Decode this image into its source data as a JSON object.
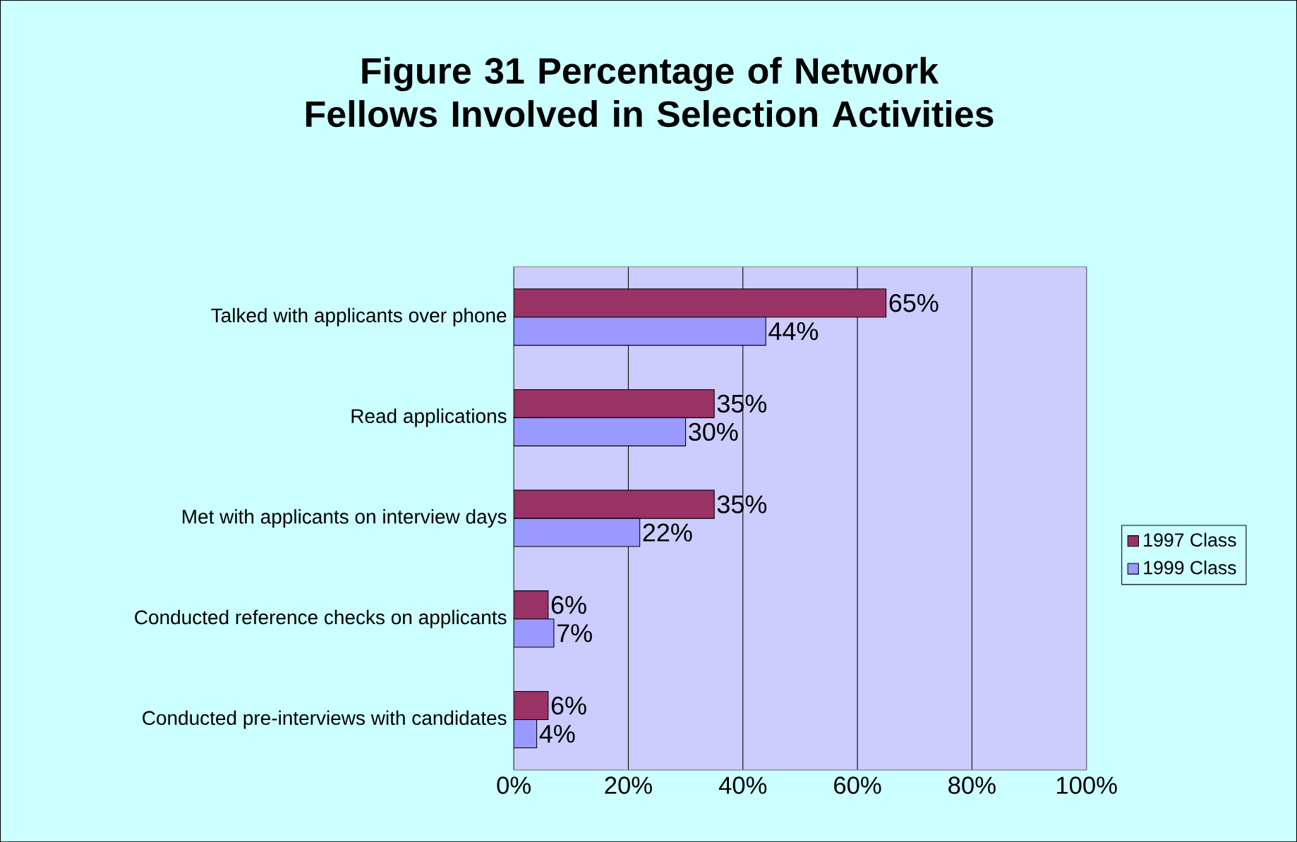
{
  "chart_data": {
    "type": "bar",
    "orientation": "horizontal",
    "title": "Figure 31   Percentage of Network Fellows Involved in Selection Activities",
    "categories": [
      "Talked with applicants over phone",
      "Read applications",
      "Met with applicants on interview days",
      "Conducted reference checks on applicants",
      "Conducted pre-interviews with candidates"
    ],
    "series": [
      {
        "name": "1997 Class",
        "color": "#993366",
        "values": [
          65,
          35,
          35,
          6,
          6
        ],
        "value_labels": [
          "65%",
          "35%",
          "35%",
          "6%",
          "6%"
        ]
      },
      {
        "name": "1999 Class",
        "color": "#9999ff",
        "values": [
          44,
          30,
          22,
          7,
          4
        ],
        "value_labels": [
          "44%",
          "30%",
          "22%",
          "7%",
          "4%"
        ]
      }
    ],
    "xlim": [
      0,
      100
    ],
    "xticks": [
      {
        "value": 0,
        "label": "0%"
      },
      {
        "value": 20,
        "label": "20%"
      },
      {
        "value": 40,
        "label": "40%"
      },
      {
        "value": 60,
        "label": "60%"
      },
      {
        "value": 80,
        "label": "80%"
      },
      {
        "value": 100,
        "label": "100%"
      }
    ],
    "grid": "x",
    "legend": "right"
  }
}
